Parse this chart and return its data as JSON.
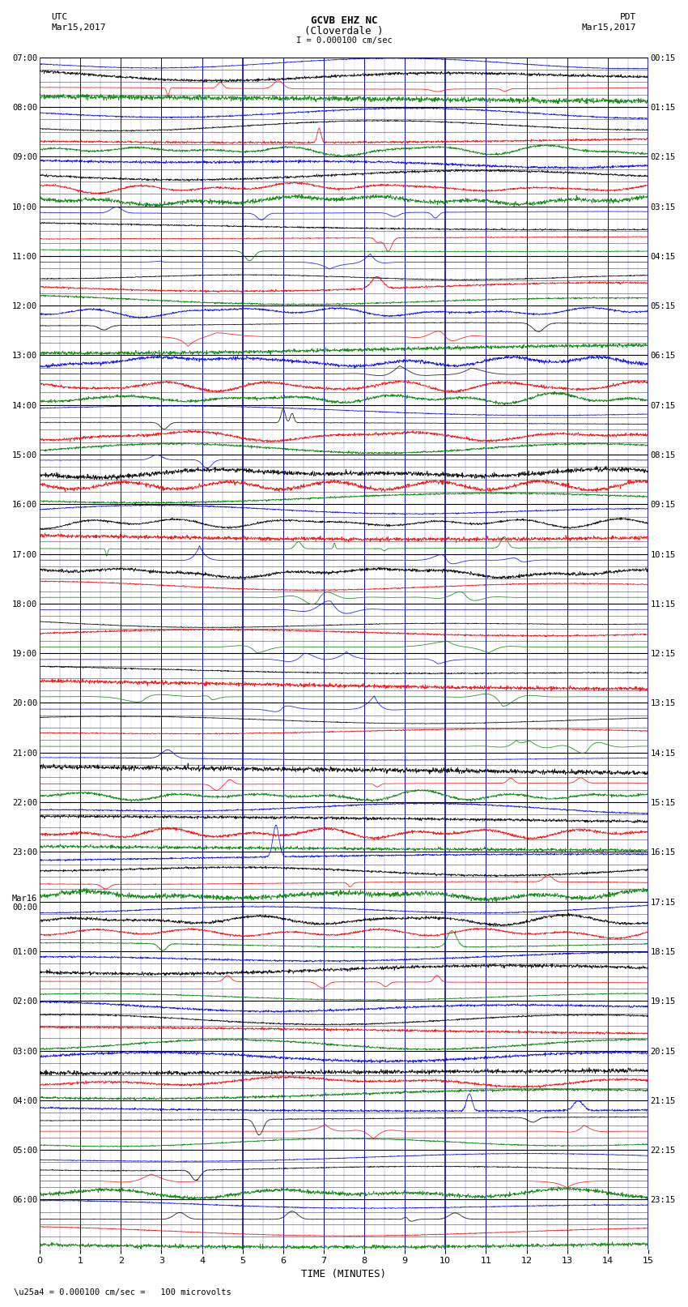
{
  "title_line1": "GCVB EHZ NC",
  "title_line2": "(Cloverdale )",
  "title_scale": "I = 0.000100 cm/sec",
  "label_left_top": "UTC",
  "label_left_date": "Mar15,2017",
  "label_right_top": "PDT",
  "label_right_date": "Mar15,2017",
  "xlabel": "TIME (MINUTES)",
  "footnote": "\\u25a4 = 0.000100 cm/sec =   100 microvolts",
  "utc_times": [
    "07:00",
    "08:00",
    "09:00",
    "10:00",
    "11:00",
    "12:00",
    "13:00",
    "14:00",
    "15:00",
    "16:00",
    "17:00",
    "18:00",
    "19:00",
    "20:00",
    "21:00",
    "22:00",
    "23:00",
    "Mar16\n00:00",
    "01:00",
    "02:00",
    "03:00",
    "04:00",
    "05:00",
    "06:00"
  ],
  "pdt_times": [
    "00:15",
    "01:15",
    "02:15",
    "03:15",
    "04:15",
    "05:15",
    "06:15",
    "07:15",
    "08:15",
    "09:15",
    "10:15",
    "11:15",
    "12:15",
    "13:15",
    "14:15",
    "15:15",
    "16:15",
    "17:15",
    "18:15",
    "19:15",
    "20:15",
    "21:15",
    "22:15",
    "23:15"
  ],
  "x_min": 0,
  "x_max": 15,
  "y_min": 0,
  "y_max": 24,
  "num_rows": 24,
  "subrows_per_hour": 4,
  "bg_color": "#ffffff",
  "grid_color_major_v": "#0000bb",
  "grid_color_major_h": "#000000",
  "grid_color_minor_v": "#8888bb",
  "grid_color_minor_h": "#888888",
  "trace_colors": [
    "blue",
    "black",
    "red",
    "green"
  ],
  "bold_v_interval": 1,
  "minor_v_count": 4
}
